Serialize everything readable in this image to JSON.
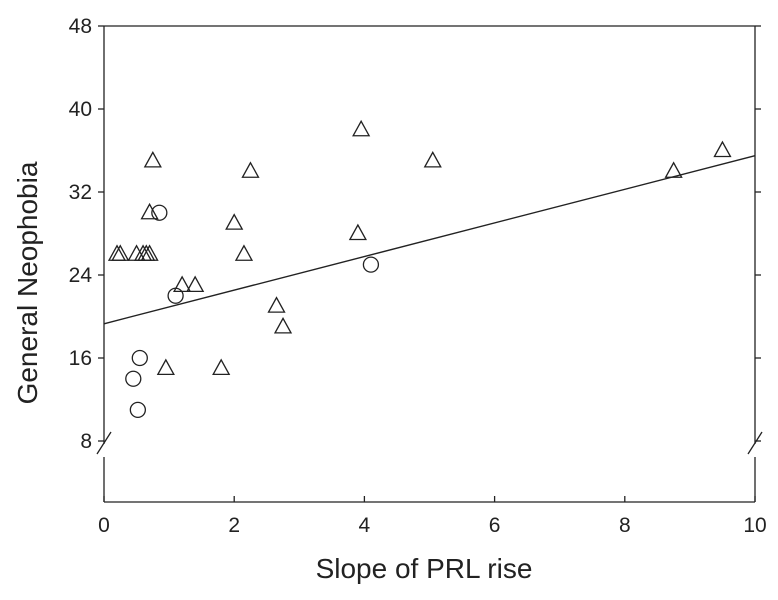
{
  "chart_data": {
    "type": "scatter",
    "title": "",
    "xlabel": "Slope of PRL rise",
    "ylabel": "General Neophobia",
    "xlim": [
      0,
      10
    ],
    "ylim": [
      8,
      48
    ],
    "xticks": [
      0,
      2,
      4,
      6,
      8,
      10
    ],
    "yticks": [
      8,
      16,
      24,
      32,
      40,
      48
    ],
    "axis_break": "y-axis below 8",
    "grid": false,
    "legend": "none",
    "series": [
      {
        "marker": "triangle",
        "points": [
          [
            0.2,
            26
          ],
          [
            0.25,
            26
          ],
          [
            0.5,
            26
          ],
          [
            0.6,
            26
          ],
          [
            0.65,
            26
          ],
          [
            0.7,
            26
          ],
          [
            0.7,
            30
          ],
          [
            0.75,
            35
          ],
          [
            1.2,
            23
          ],
          [
            1.4,
            23
          ],
          [
            0.95,
            15
          ],
          [
            1.8,
            15
          ],
          [
            2.0,
            29
          ],
          [
            2.15,
            26
          ],
          [
            2.25,
            34
          ],
          [
            2.65,
            21
          ],
          [
            2.75,
            19
          ],
          [
            3.9,
            28
          ],
          [
            3.95,
            38
          ],
          [
            5.05,
            35
          ],
          [
            8.75,
            34
          ],
          [
            9.5,
            36
          ]
        ]
      },
      {
        "marker": "circle",
        "points": [
          [
            0.85,
            30
          ],
          [
            1.1,
            22
          ],
          [
            0.55,
            16
          ],
          [
            0.45,
            14
          ],
          [
            0.52,
            11
          ],
          [
            4.1,
            25
          ]
        ]
      }
    ],
    "regression_line": {
      "x": [
        0,
        10
      ],
      "y": [
        19.3,
        35.5
      ]
    }
  }
}
